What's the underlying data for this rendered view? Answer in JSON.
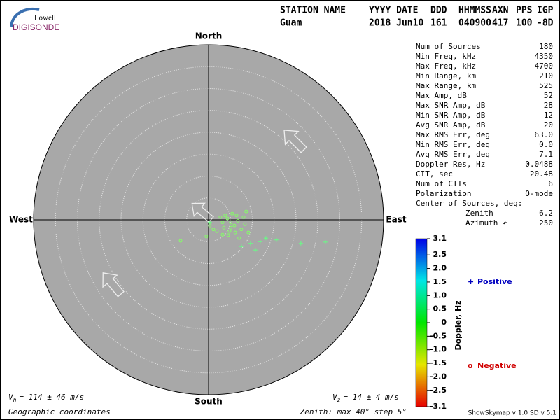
{
  "logo": {
    "top": "Lowell",
    "bottom": "DIGISONDE"
  },
  "header": {
    "labels": [
      "STATION NAME",
      "YYYY DATE",
      "DDD",
      "HHMMSS",
      "AXN",
      "PPS",
      "IGP"
    ],
    "values": [
      "Guam",
      "2018 Jun10",
      "161",
      "040900",
      "417",
      "100",
      "-8D"
    ]
  },
  "stats": {
    "rows": [
      [
        "Num of Sources",
        "180"
      ],
      [
        "Min Freq, kHz",
        "4350"
      ],
      [
        "Max Freq, kHz",
        "4700"
      ],
      [
        "Min Range, km",
        "210"
      ],
      [
        "Max Range, km",
        "525"
      ],
      [
        "Max Amp, dB",
        "52"
      ],
      [
        "Max SNR Amp, dB",
        "28"
      ],
      [
        "Min SNR Amp, dB",
        "12"
      ],
      [
        "Avg SNR Amp, dB",
        "20"
      ],
      [
        "Max RMS Err, deg",
        "63.0"
      ],
      [
        "Min RMS Err, deg",
        "0.0"
      ],
      [
        "Avg RMS Err, deg",
        "7.1"
      ],
      [
        "Doppler Res, Hz",
        "0.0488"
      ],
      [
        "CIT, sec",
        "20.48"
      ],
      [
        "Num of CITs",
        "6"
      ],
      [
        "Polarization",
        "O-mode"
      ]
    ],
    "center_title": "Center of Sources, deg:",
    "center_rows": [
      [
        "Zenith",
        "6.2"
      ],
      [
        "Azimuth ↶",
        "250"
      ]
    ]
  },
  "chart_data": {
    "type": "skymap",
    "directions": {
      "north": "North",
      "south": "South",
      "west": "West",
      "east": "East"
    },
    "rlim": [
      0,
      40
    ],
    "rticks": [
      5,
      10,
      15,
      20,
      25,
      30,
      35
    ],
    "series": [
      {
        "name": "Positive",
        "marker": "+",
        "color": "#0000c0",
        "x": [
          11.8,
          15.5,
          21.1,
          26.7,
          9.6,
          10.7,
          0.3,
          7.5,
          13.1
        ],
        "y": [
          -5.0,
          -4.6,
          -5.4,
          -5.1,
          -5.4,
          -6.9,
          -0.6,
          -6.1,
          -4.2
        ],
        "doppler": [
          0.3,
          0.3,
          0.3,
          0.3,
          0.3,
          0.3,
          0.3,
          0.3,
          0.3
        ]
      },
      {
        "name": "Negative",
        "marker": "o",
        "color": "#d00000",
        "x": [
          4.3,
          5.1,
          5.9,
          3.5,
          6.7,
          4.8,
          7.5,
          3.2,
          5.4,
          6.4,
          8.3,
          4.5,
          1.9,
          0.3,
          -6.4,
          -0.5,
          7.0,
          9.1,
          3.8,
          6.1,
          2.7,
          8.0,
          5.1,
          3.2,
          1.1,
          8.6
        ],
        "y": [
          0.3,
          -0.6,
          -1.3,
          -1.8,
          -0.2,
          -2.6,
          -2.2,
          -0.6,
          1.4,
          1.0,
          -1.0,
          -3.5,
          -2.6,
          -1.3,
          -4.8,
          -3.8,
          -4.2,
          -2.9,
          1.0,
          -2.9,
          0.6,
          0.6,
          -1.8,
          -3.4,
          -2.2,
          1.9
        ],
        "doppler": [
          -0.3,
          -0.3,
          -0.3,
          -0.3,
          -0.3,
          -0.3,
          -0.3,
          -0.3,
          -0.3,
          -0.3,
          -0.3,
          -0.3,
          -0.3,
          -0.3,
          -0.3,
          -0.3,
          -0.3,
          -0.3,
          -0.3,
          -0.3,
          -0.3,
          -0.3,
          -0.3,
          -0.3,
          -0.3,
          -0.3
        ]
      }
    ],
    "colorbar": {
      "label": "Doppler, Hz",
      "clim": [
        -3.1,
        3.1
      ],
      "ticks": [
        3.1,
        2.5,
        {
          "value": 2,
          "label": "2.0"
        },
        1.5,
        {
          "value": 1,
          "label": "1.0"
        },
        0.5,
        0,
        -0.5,
        {
          "value": -1,
          "label": "-1.0"
        },
        -1.5,
        {
          "value": -2,
          "label": "-2.0"
        },
        -2.5,
        -3.1
      ]
    },
    "vh": {
      "symbol": "V",
      "subscript": "h",
      "text": "= 114 ± 46 m/s"
    },
    "vz": {
      "symbol": "V",
      "subscript": "z",
      "text": "= 14 ± 4 m/s"
    },
    "coordinates": "Geographic coordinates",
    "zenith_note": "Zenith: max 40°  step 5°",
    "version": "ShowSkymap v 1.0  SD v 5.1"
  }
}
